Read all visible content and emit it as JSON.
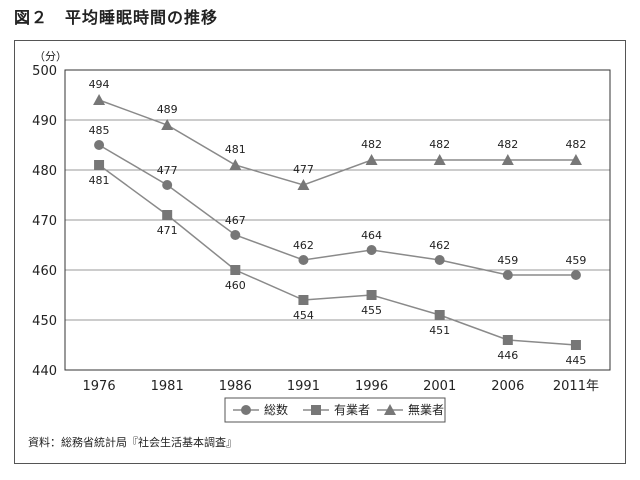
{
  "figure": {
    "title": "図２　平均睡眠時間の推移",
    "source": "資料：総務省統計局『社会生活基本調査』"
  },
  "chart_data": {
    "type": "line",
    "title": "",
    "ylabel": "（分）",
    "xlabel": "",
    "ylim": [
      440,
      500
    ],
    "yticks": [
      440,
      450,
      460,
      470,
      480,
      490,
      500
    ],
    "categories": [
      "1976",
      "1981",
      "1986",
      "1991",
      "1996",
      "2001",
      "2006",
      "2011年"
    ],
    "grid": true,
    "legend_position": "bottom",
    "series": [
      {
        "name": "総数",
        "marker": "circle",
        "values": [
          485,
          477,
          467,
          462,
          464,
          462,
          459,
          459
        ]
      },
      {
        "name": "有業者",
        "marker": "square",
        "values": [
          481,
          471,
          460,
          454,
          455,
          451,
          446,
          445
        ]
      },
      {
        "name": "無業者",
        "marker": "triangle",
        "values": [
          494,
          489,
          481,
          477,
          482,
          482,
          482,
          482
        ]
      }
    ],
    "colors": {
      "line": "#8a8a8a",
      "marker": "#777777",
      "grid": "#9a9a9a",
      "axis": "#333333"
    }
  }
}
